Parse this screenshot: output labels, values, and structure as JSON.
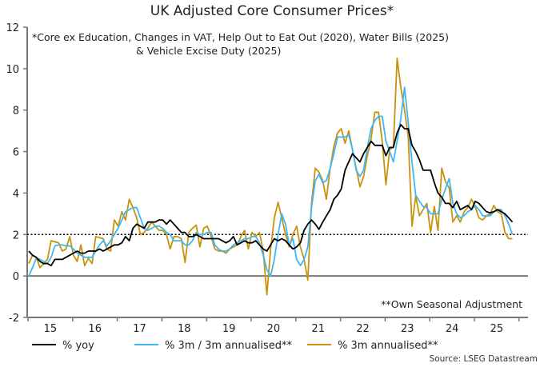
{
  "chart_data": {
    "type": "line",
    "title": "UK Adjusted Core Consumer Prices*",
    "notes": [
      "*Core ex Education, Changes in VAT, Help Out to Eat Out (2020), Water Bills (2025)",
      "& Vehicle Excise Duty (2025)"
    ],
    "annotation": "**Own Seasonal Adjustment",
    "source": "Source: LSEG Datastream",
    "xlabel": "",
    "ylabel": "",
    "ylim": [
      -2,
      12
    ],
    "yticks": [
      "-2",
      "0",
      "2",
      "4",
      "6",
      "8",
      "10",
      "12"
    ],
    "xticks": [
      "15",
      "16",
      "17",
      "18",
      "19",
      "20",
      "21",
      "22",
      "23",
      "24",
      "25"
    ],
    "reference_line": {
      "y": 2,
      "style": "dotted"
    },
    "legend_placement": "bottom",
    "grid": false,
    "x": [
      "2015-01",
      "2015-02",
      "2015-03",
      "2015-04",
      "2015-05",
      "2015-06",
      "2015-07",
      "2015-08",
      "2015-09",
      "2015-10",
      "2015-11",
      "2015-12",
      "2016-01",
      "2016-02",
      "2016-03",
      "2016-04",
      "2016-05",
      "2016-06",
      "2016-07",
      "2016-08",
      "2016-09",
      "2016-10",
      "2016-11",
      "2016-12",
      "2017-01",
      "2017-02",
      "2017-03",
      "2017-04",
      "2017-05",
      "2017-06",
      "2017-07",
      "2017-08",
      "2017-09",
      "2017-10",
      "2017-11",
      "2017-12",
      "2018-01",
      "2018-02",
      "2018-03",
      "2018-04",
      "2018-05",
      "2018-06",
      "2018-07",
      "2018-08",
      "2018-09",
      "2018-10",
      "2018-11",
      "2018-12",
      "2019-01",
      "2019-02",
      "2019-03",
      "2019-04",
      "2019-05",
      "2019-06",
      "2019-07",
      "2019-08",
      "2019-09",
      "2019-10",
      "2019-11",
      "2019-12",
      "2020-01",
      "2020-02",
      "2020-03",
      "2020-04",
      "2020-05",
      "2020-06",
      "2020-07",
      "2020-08",
      "2020-09",
      "2020-10",
      "2020-11",
      "2020-12",
      "2021-01",
      "2021-02",
      "2021-03",
      "2021-04",
      "2021-05",
      "2021-06",
      "2021-07",
      "2021-08",
      "2021-09",
      "2021-10",
      "2021-11",
      "2021-12",
      "2022-01",
      "2022-02",
      "2022-03",
      "2022-04",
      "2022-05",
      "2022-06",
      "2022-07",
      "2022-08",
      "2022-09",
      "2022-10",
      "2022-11",
      "2022-12",
      "2023-01",
      "2023-02",
      "2023-03",
      "2023-04",
      "2023-05",
      "2023-06",
      "2023-07",
      "2023-08",
      "2023-09",
      "2023-10",
      "2023-11",
      "2023-12",
      "2024-01",
      "2024-02",
      "2024-03",
      "2024-04",
      "2024-05",
      "2024-06",
      "2024-07",
      "2024-08",
      "2024-09",
      "2024-10",
      "2024-11",
      "2024-12",
      "2025-01",
      "2025-02",
      "2025-03",
      "2025-04",
      "2025-05",
      "2025-06",
      "2025-07",
      "2025-08",
      "2025-09",
      "2025-10",
      "2025-11"
    ],
    "series": [
      {
        "name": "% yoy",
        "color": "#000000",
        "values": [
          1.2,
          1.0,
          0.9,
          0.7,
          0.6,
          0.6,
          0.5,
          0.8,
          0.8,
          0.8,
          0.9,
          1.0,
          1.1,
          1.2,
          1.1,
          1.1,
          1.2,
          1.2,
          1.2,
          1.3,
          1.2,
          1.3,
          1.4,
          1.5,
          1.5,
          1.6,
          1.9,
          1.7,
          2.3,
          2.5,
          2.4,
          2.3,
          2.6,
          2.6,
          2.6,
          2.7,
          2.7,
          2.5,
          2.7,
          2.5,
          2.3,
          2.1,
          2.1,
          1.9,
          1.9,
          2.0,
          1.9,
          1.8,
          1.8,
          1.8,
          1.8,
          1.8,
          1.7,
          1.6,
          1.7,
          1.9,
          1.5,
          1.6,
          1.7,
          1.6,
          1.6,
          1.7,
          1.5,
          1.3,
          1.2,
          1.5,
          1.8,
          1.7,
          1.8,
          1.7,
          1.5,
          1.3,
          1.4,
          1.6,
          2.2,
          2.5,
          2.7,
          2.5,
          2.25,
          2.6,
          2.9,
          3.2,
          3.7,
          3.9,
          4.2,
          5.1,
          5.5,
          5.9,
          5.7,
          5.5,
          5.9,
          6.2,
          6.5,
          6.3,
          6.3,
          6.3,
          5.8,
          6.2,
          6.2,
          6.9,
          7.3,
          7.1,
          7.1,
          6.3,
          6.0,
          5.6,
          5.1,
          5.1,
          5.1,
          4.5,
          4.0,
          3.8,
          3.5,
          3.5,
          3.3,
          3.6,
          3.2,
          3.3,
          3.4,
          3.2,
          3.6,
          3.5,
          3.3,
          3.1,
          3.05,
          3.1,
          3.2,
          3.1,
          3.0,
          2.8,
          2.6
        ]
      },
      {
        "name": "% 3m / 3m annualised**",
        "color": "#3db8f5",
        "values": [
          0.0,
          0.4,
          0.85,
          0.8,
          0.7,
          0.6,
          0.9,
          1.45,
          1.5,
          1.5,
          1.45,
          1.45,
          1.3,
          1.1,
          1.0,
          0.9,
          0.9,
          0.9,
          1.2,
          1.5,
          1.7,
          1.45,
          1.7,
          2.0,
          2.3,
          2.7,
          3.1,
          3.2,
          3.3,
          3.3,
          2.8,
          2.3,
          2.2,
          2.3,
          2.4,
          2.4,
          2.3,
          2.1,
          2.0,
          1.7,
          1.7,
          1.7,
          1.5,
          1.5,
          1.7,
          2.1,
          2.0,
          2.0,
          2.1,
          2.1,
          1.5,
          1.3,
          1.2,
          1.2,
          1.3,
          1.5,
          1.6,
          1.7,
          1.8,
          1.8,
          1.9,
          1.9,
          1.6,
          1.0,
          0.3,
          0.0,
          0.8,
          2.0,
          3.0,
          2.5,
          1.5,
          1.8,
          0.8,
          0.5,
          0.8,
          1.4,
          3.3,
          4.6,
          4.9,
          4.5,
          4.6,
          5.2,
          5.9,
          6.7,
          6.7,
          6.7,
          6.8,
          6.1,
          5.1,
          4.8,
          5.1,
          6.2,
          7.1,
          7.5,
          7.7,
          7.7,
          6.5,
          6.0,
          5.5,
          6.5,
          7.6,
          9.1,
          7.4,
          5.5,
          3.9,
          3.6,
          3.35,
          3.3,
          3.0,
          3.0,
          3.0,
          3.7,
          4.2,
          4.7,
          3.5,
          3.0,
          2.8,
          2.9,
          3.1,
          3.2,
          3.4,
          3.2,
          2.9,
          2.9,
          2.9,
          3.1,
          3.2,
          3.2,
          2.9,
          2.5,
          2.0
        ]
      },
      {
        "name": "% 3m annualised**",
        "color": "#c9920e",
        "values": [
          0.6,
          1.0,
          0.9,
          0.4,
          0.6,
          0.8,
          1.7,
          1.65,
          1.6,
          1.2,
          1.3,
          1.9,
          1.0,
          0.7,
          1.5,
          0.5,
          0.85,
          0.6,
          1.9,
          1.85,
          1.8,
          1.3,
          1.2,
          2.7,
          2.4,
          3.1,
          2.7,
          3.7,
          3.3,
          2.8,
          2.0,
          2.1,
          2.3,
          2.6,
          2.4,
          2.2,
          2.2,
          2.0,
          1.3,
          1.9,
          1.9,
          1.8,
          0.65,
          2.1,
          2.3,
          2.45,
          1.4,
          2.3,
          2.4,
          1.9,
          1.3,
          1.2,
          1.2,
          1.1,
          1.3,
          1.4,
          1.5,
          1.9,
          2.2,
          1.3,
          2.1,
          1.9,
          2.1,
          1.2,
          -0.9,
          1.3,
          2.8,
          3.55,
          2.8,
          2.0,
          1.4,
          2.0,
          2.4,
          1.4,
          0.8,
          -0.2,
          3.5,
          5.2,
          5.0,
          4.6,
          3.7,
          5.2,
          6.25,
          6.9,
          7.1,
          6.4,
          7.0,
          6.1,
          5.2,
          4.3,
          4.8,
          5.8,
          6.6,
          7.9,
          7.9,
          6.5,
          4.4,
          6.1,
          6.2,
          10.5,
          9.1,
          8.0,
          6.7,
          2.4,
          3.85,
          2.9,
          3.2,
          3.5,
          2.1,
          3.35,
          2.2,
          5.2,
          4.55,
          4.25,
          2.6,
          2.9,
          2.6,
          3.1,
          3.3,
          3.7,
          3.35,
          2.8,
          2.7,
          2.9,
          3.0,
          3.4,
          3.1,
          3.0,
          2.1,
          1.8,
          1.8
        ]
      }
    ]
  }
}
